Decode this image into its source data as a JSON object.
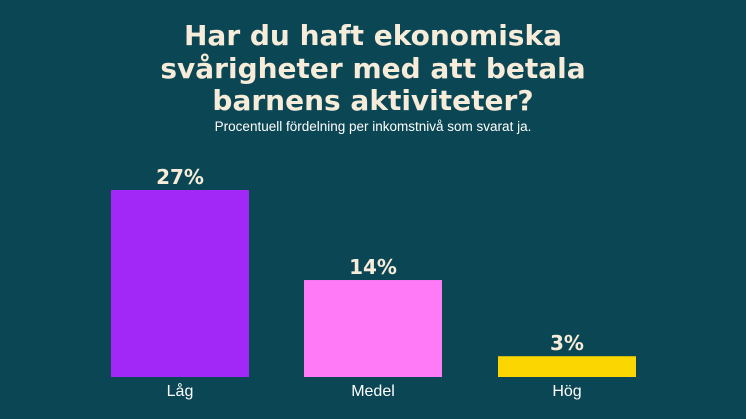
{
  "chart_data": {
    "type": "bar",
    "title": [
      "Har du haft ekonomiska",
      "svårigheter med att betala",
      "barnens aktiviteter?"
    ],
    "subtitle": "Procentuell fördelning per inkomstnivå som svarat ja.",
    "categories": [
      "Låg",
      "Medel",
      "Hög"
    ],
    "values": [
      27,
      14,
      3
    ],
    "value_labels": [
      "27%",
      "14%",
      "3%"
    ],
    "colors": [
      "#a128f7",
      "#ff7af6",
      "#fcd600"
    ],
    "ylim": [
      0,
      27
    ],
    "grid": false
  },
  "colors": {
    "background": "#0b4654",
    "title": "#f6ecd9",
    "text": "#ffffff"
  }
}
